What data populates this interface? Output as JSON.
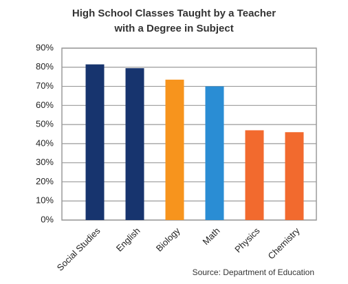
{
  "chart_data": {
    "type": "bar",
    "title": [
      "High School Classes Taught by a Teacher",
      "with a Degree in Subject"
    ],
    "categories": [
      "Social Studies",
      "English",
      "Biology",
      "Math",
      "Physics",
      "Chemistry"
    ],
    "values": [
      81.5,
      79.5,
      73.5,
      70,
      47,
      46
    ],
    "colors": [
      "#17346e",
      "#17346e",
      "#f7941d",
      "#2a8dd4",
      "#f26a2e",
      "#f26a2e"
    ],
    "ylim": [
      0,
      90
    ],
    "yticks": [
      {
        "value": 0,
        "label": "0%"
      },
      {
        "value": 10,
        "label": "10%"
      },
      {
        "value": 20,
        "label": "20%"
      },
      {
        "value": 30,
        "label": "30%"
      },
      {
        "value": 40,
        "label": "40%"
      },
      {
        "value": 50,
        "label": "50%"
      },
      {
        "value": 60,
        "label": "60%"
      },
      {
        "value": 70,
        "label": "70%"
      },
      {
        "value": 80,
        "label": "80%"
      },
      {
        "value": 90,
        "label": "90%"
      }
    ],
    "grid": true,
    "source": "Source: Department of Education"
  }
}
